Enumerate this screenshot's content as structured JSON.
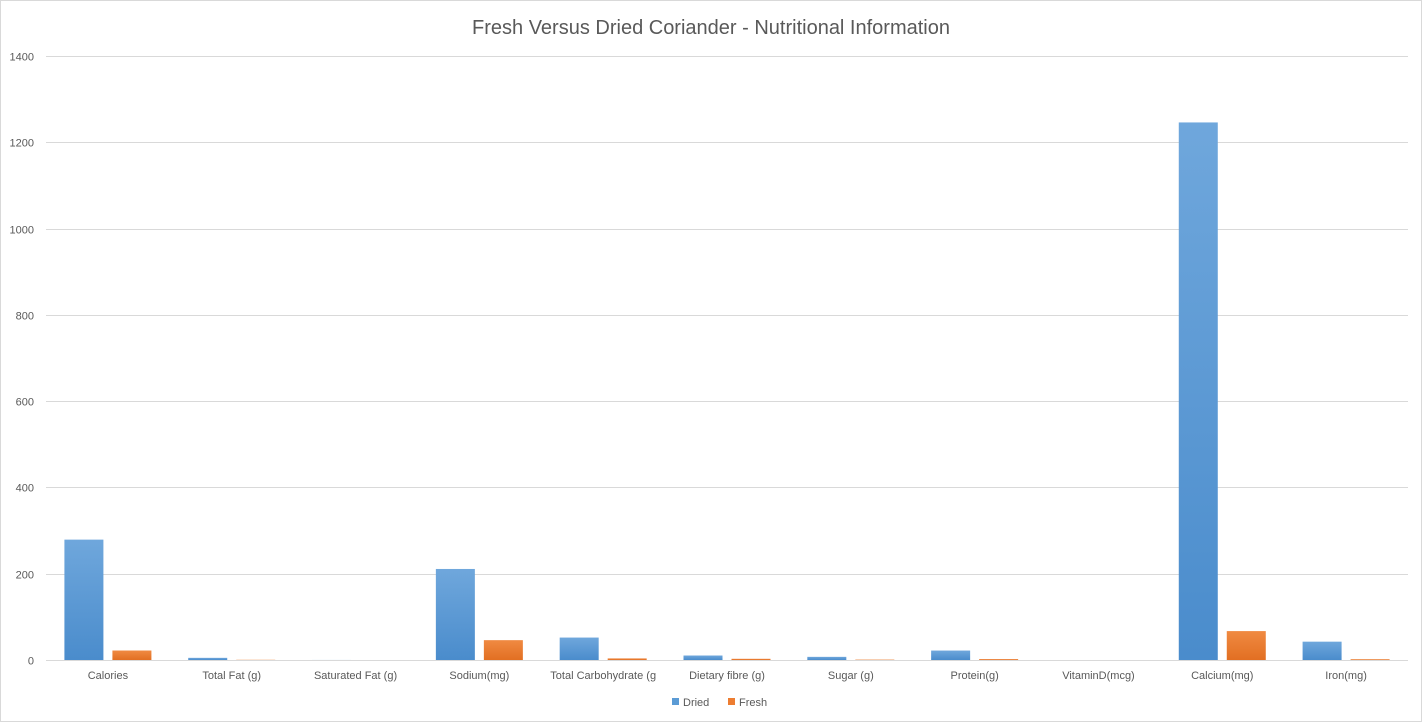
{
  "chart_data": {
    "type": "bar",
    "title": "Fresh Versus Dried Coriander - Nutritional Information",
    "xlabel": "",
    "ylabel": "",
    "ylim": [
      0,
      1400
    ],
    "yticks": [
      0,
      200,
      400,
      600,
      800,
      1000,
      1200,
      1400
    ],
    "grid": true,
    "legend_position": "bottom",
    "categories": [
      "Calories",
      "Total Fat (g)",
      "Saturated Fat (g)",
      "Sodium(mg)",
      "Total Carbohydrate (g",
      "Dietary fibre (g)",
      "Sugar (g)",
      "Protein(g)",
      "VitaminD(mcg)",
      "Calcium(mg)",
      "Iron(mg)"
    ],
    "series": [
      {
        "name": "Dried",
        "color": "#5B9BD5",
        "values": [
          279,
          5,
          0.1,
          211,
          52,
          10.4,
          7.3,
          21.9,
          0,
          1246,
          42.5
        ]
      },
      {
        "name": "Fresh",
        "color": "#ED7D31",
        "values": [
          22,
          0.5,
          0,
          46,
          3.7,
          2.8,
          0.9,
          2.1,
          0,
          67,
          1.8
        ]
      }
    ]
  }
}
